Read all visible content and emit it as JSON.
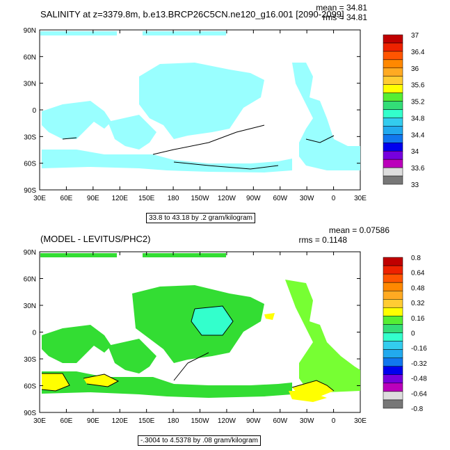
{
  "colors": {
    "ocean_top": "#99ffff",
    "ocean_bottom": "#33dd33",
    "ocean_bottom_light": "#77ff33",
    "positive_bias": "#ffff00",
    "negative_bias": "#33ffcc"
  },
  "chart_data": [
    {
      "type": "heatmap",
      "title": "SALINITY at z=3379.8m, b.e13.BRCP26C5CN.ne120_g16.001 [2090-2099]",
      "mean_label": "mean = 34.81",
      "rms_label": "rms = 34.81",
      "mean": 34.81,
      "rms": 34.81,
      "contour_info": "33.8 to 43.18 by .2 gram/kilogram",
      "units": "gram/kilogram",
      "x_ticks": [
        "30E",
        "60E",
        "90E",
        "120E",
        "150E",
        "180",
        "150W",
        "120W",
        "90W",
        "60W",
        "30W",
        "0",
        "30E"
      ],
      "y_ticks": [
        "90N",
        "60N",
        "30N",
        "0",
        "30S",
        "60S",
        "90S"
      ],
      "colorbar": {
        "labels": [
          "37",
          "36.4",
          "36",
          "35.6",
          "35.2",
          "34.8",
          "34.4",
          "34",
          "33.6",
          "33"
        ],
        "colors": [
          "#c00000",
          "#ee2200",
          "#ff5500",
          "#ff8800",
          "#ffaa22",
          "#ffcc33",
          "#ffff00",
          "#55ee33",
          "#33dd77",
          "#33ffcc",
          "#33ccee",
          "#22aaee",
          "#1177ee",
          "#0000ee",
          "#7700dd",
          "#bb00bb",
          "#dddddd",
          "#777777"
        ]
      }
    },
    {
      "type": "heatmap",
      "title": "(MODEL - LEVITUS/PHC2)",
      "mean_label": "mean = 0.07586",
      "rms_label": "rms = 0.1148",
      "mean": 0.07586,
      "rms": 0.1148,
      "contour_info": "-.3004 to 4.5378 by .08 gram/kilogram",
      "units": "gram/kilogram",
      "x_ticks": [
        "30E",
        "60E",
        "90E",
        "120E",
        "150E",
        "180",
        "150W",
        "120W",
        "90W",
        "60W",
        "30W",
        "0",
        "30E"
      ],
      "y_ticks": [
        "90N",
        "60N",
        "30N",
        "0",
        "30S",
        "60S",
        "90S"
      ],
      "colorbar": {
        "labels": [
          "0.8",
          "0.64",
          "0.48",
          "0.32",
          "0.16",
          "0",
          "-0.16",
          "-0.32",
          "-0.48",
          "-0.64",
          "-0.8"
        ],
        "colors": [
          "#c00000",
          "#ee2200",
          "#ff5500",
          "#ff8800",
          "#ffaa22",
          "#ffcc33",
          "#ffff00",
          "#55ee33",
          "#33dd77",
          "#33ffcc",
          "#33ccee",
          "#22aaee",
          "#1177ee",
          "#0000ee",
          "#7700dd",
          "#bb00bb",
          "#dddddd",
          "#777777"
        ]
      }
    }
  ]
}
